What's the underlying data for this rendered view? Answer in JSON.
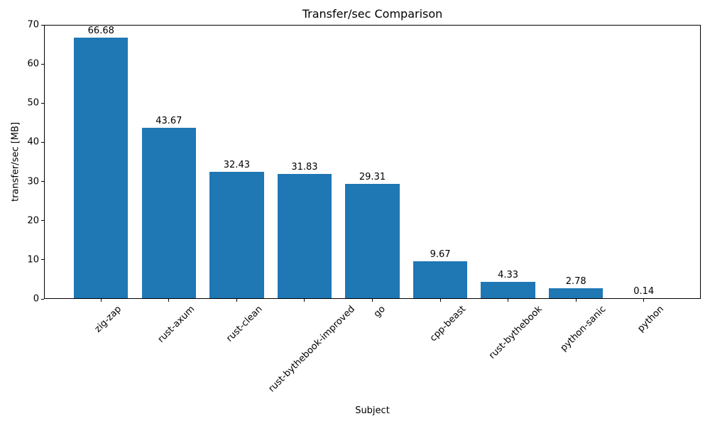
{
  "chart_data": {
    "type": "bar",
    "title": "Transfer/sec Comparison",
    "xlabel": "Subject",
    "ylabel": "transfer/sec [MB]",
    "categories": [
      "zig-zap",
      "rust-axum",
      "rust-clean",
      "rust-bythebook-improved",
      "go",
      "cpp-beast",
      "rust-bythebook",
      "python-sanic",
      "python"
    ],
    "values": [
      66.68,
      43.67,
      32.43,
      31.83,
      29.31,
      9.67,
      4.33,
      2.78,
      0.14
    ],
    "value_labels": [
      "66.68",
      "43.67",
      "32.43",
      "31.83",
      "29.31",
      "9.67",
      "4.33",
      "2.78",
      "0.14"
    ],
    "yticks": [
      0,
      10,
      20,
      30,
      40,
      50,
      60,
      70
    ],
    "ylim": [
      0,
      70
    ],
    "bar_color": "#1f77b4",
    "grid": false,
    "legend": null,
    "x_tick_rotation_deg": 45
  }
}
